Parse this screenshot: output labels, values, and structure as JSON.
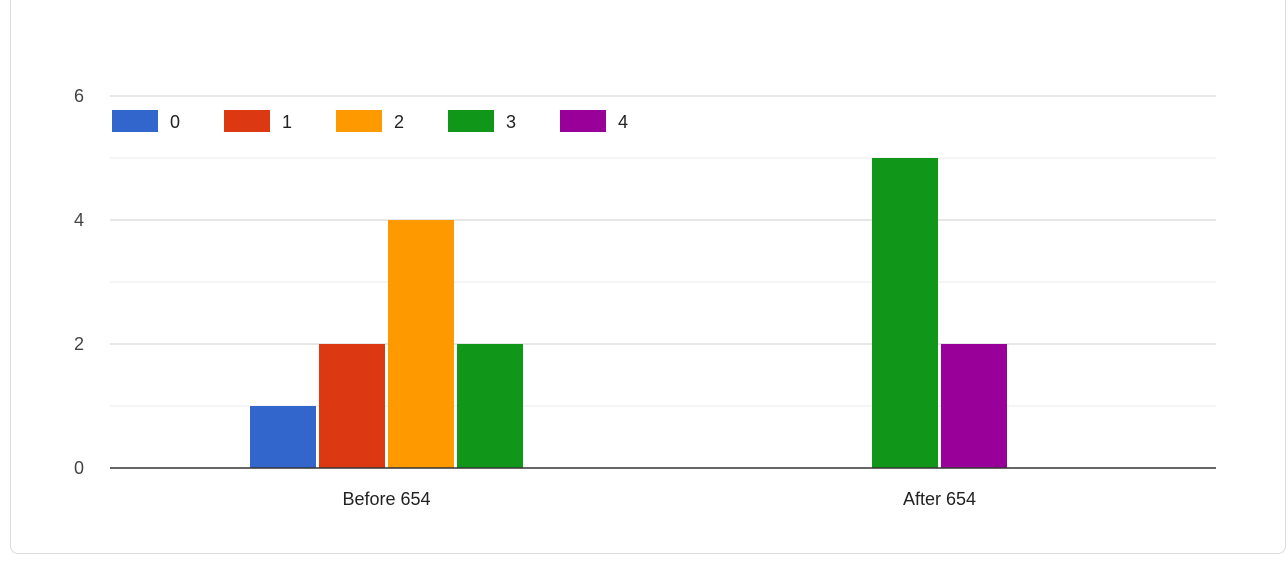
{
  "chart_data": {
    "type": "bar",
    "categories": [
      "Before 654",
      "After 654"
    ],
    "series": [
      {
        "name": "0",
        "values": [
          1,
          0
        ],
        "color": "#3366cc"
      },
      {
        "name": "1",
        "values": [
          2,
          0
        ],
        "color": "#dc3912"
      },
      {
        "name": "2",
        "values": [
          4,
          0
        ],
        "color": "#ff9900"
      },
      {
        "name": "3",
        "values": [
          2,
          5
        ],
        "color": "#109618"
      },
      {
        "name": "4",
        "values": [
          0,
          2
        ],
        "color": "#990099"
      }
    ],
    "ylim": [
      0,
      6
    ],
    "yticks": [
      "0",
      "2",
      "4",
      "6"
    ],
    "grid": true,
    "legend": "top-left"
  }
}
